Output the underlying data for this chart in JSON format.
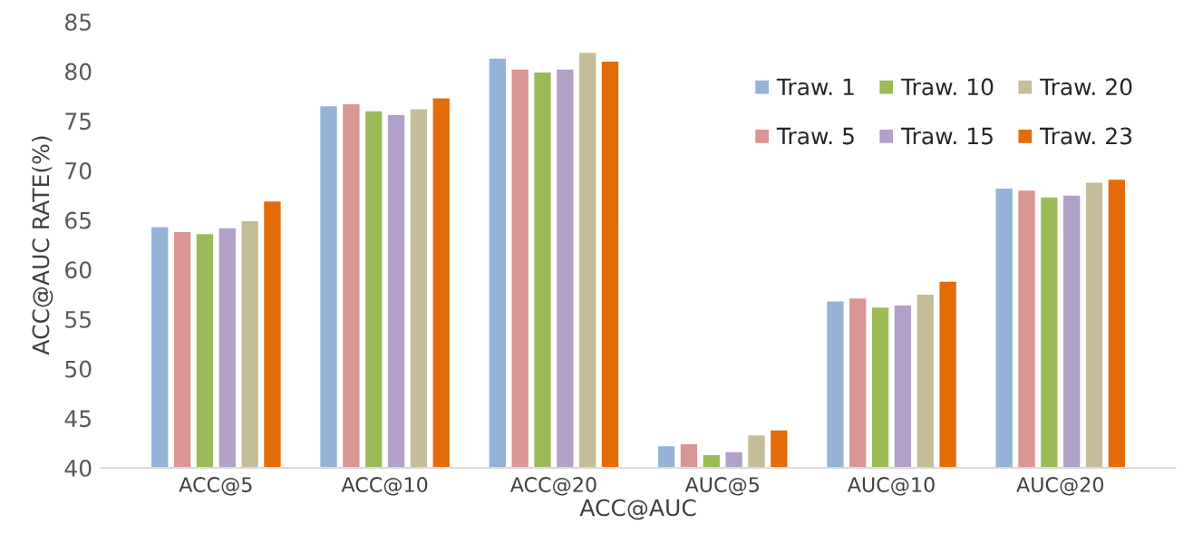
{
  "chart_data": {
    "type": "bar",
    "xlabel": "ACC@AUC",
    "ylabel": "ACC@AUC RATE(%)",
    "categories": [
      "ACC@5",
      "ACC@10",
      "ACC@20",
      "AUC@5",
      "AUC@10",
      "AUC@20"
    ],
    "series": [
      {
        "name": "Traw. 1",
        "color": "#95b3d7",
        "values": [
          64.4,
          76.6,
          81.4,
          42.3,
          56.9,
          68.3
        ]
      },
      {
        "name": "Traw. 5",
        "color": "#da9694",
        "values": [
          63.9,
          76.8,
          80.3,
          42.5,
          57.2,
          68.1
        ]
      },
      {
        "name": "Traw. 10",
        "color": "#9bbb59",
        "values": [
          63.7,
          76.1,
          80.0,
          41.4,
          56.3,
          67.4
        ]
      },
      {
        "name": "Traw. 15",
        "color": "#b1a0c7",
        "values": [
          64.3,
          75.7,
          80.3,
          41.7,
          56.5,
          67.6
        ]
      },
      {
        "name": "Traw. 20",
        "color": "#c4bd97",
        "values": [
          65.0,
          76.3,
          82.0,
          43.4,
          57.6,
          68.9
        ]
      },
      {
        "name": "Traw. 23",
        "color": "#e36c09",
        "values": [
          67.0,
          77.4,
          81.1,
          43.9,
          58.9,
          69.2
        ]
      }
    ],
    "ylim": [
      40,
      85
    ],
    "yticks": [
      40,
      45,
      50,
      55,
      60,
      65,
      70,
      75,
      80,
      85
    ],
    "grid": false,
    "legend": "top right"
  }
}
